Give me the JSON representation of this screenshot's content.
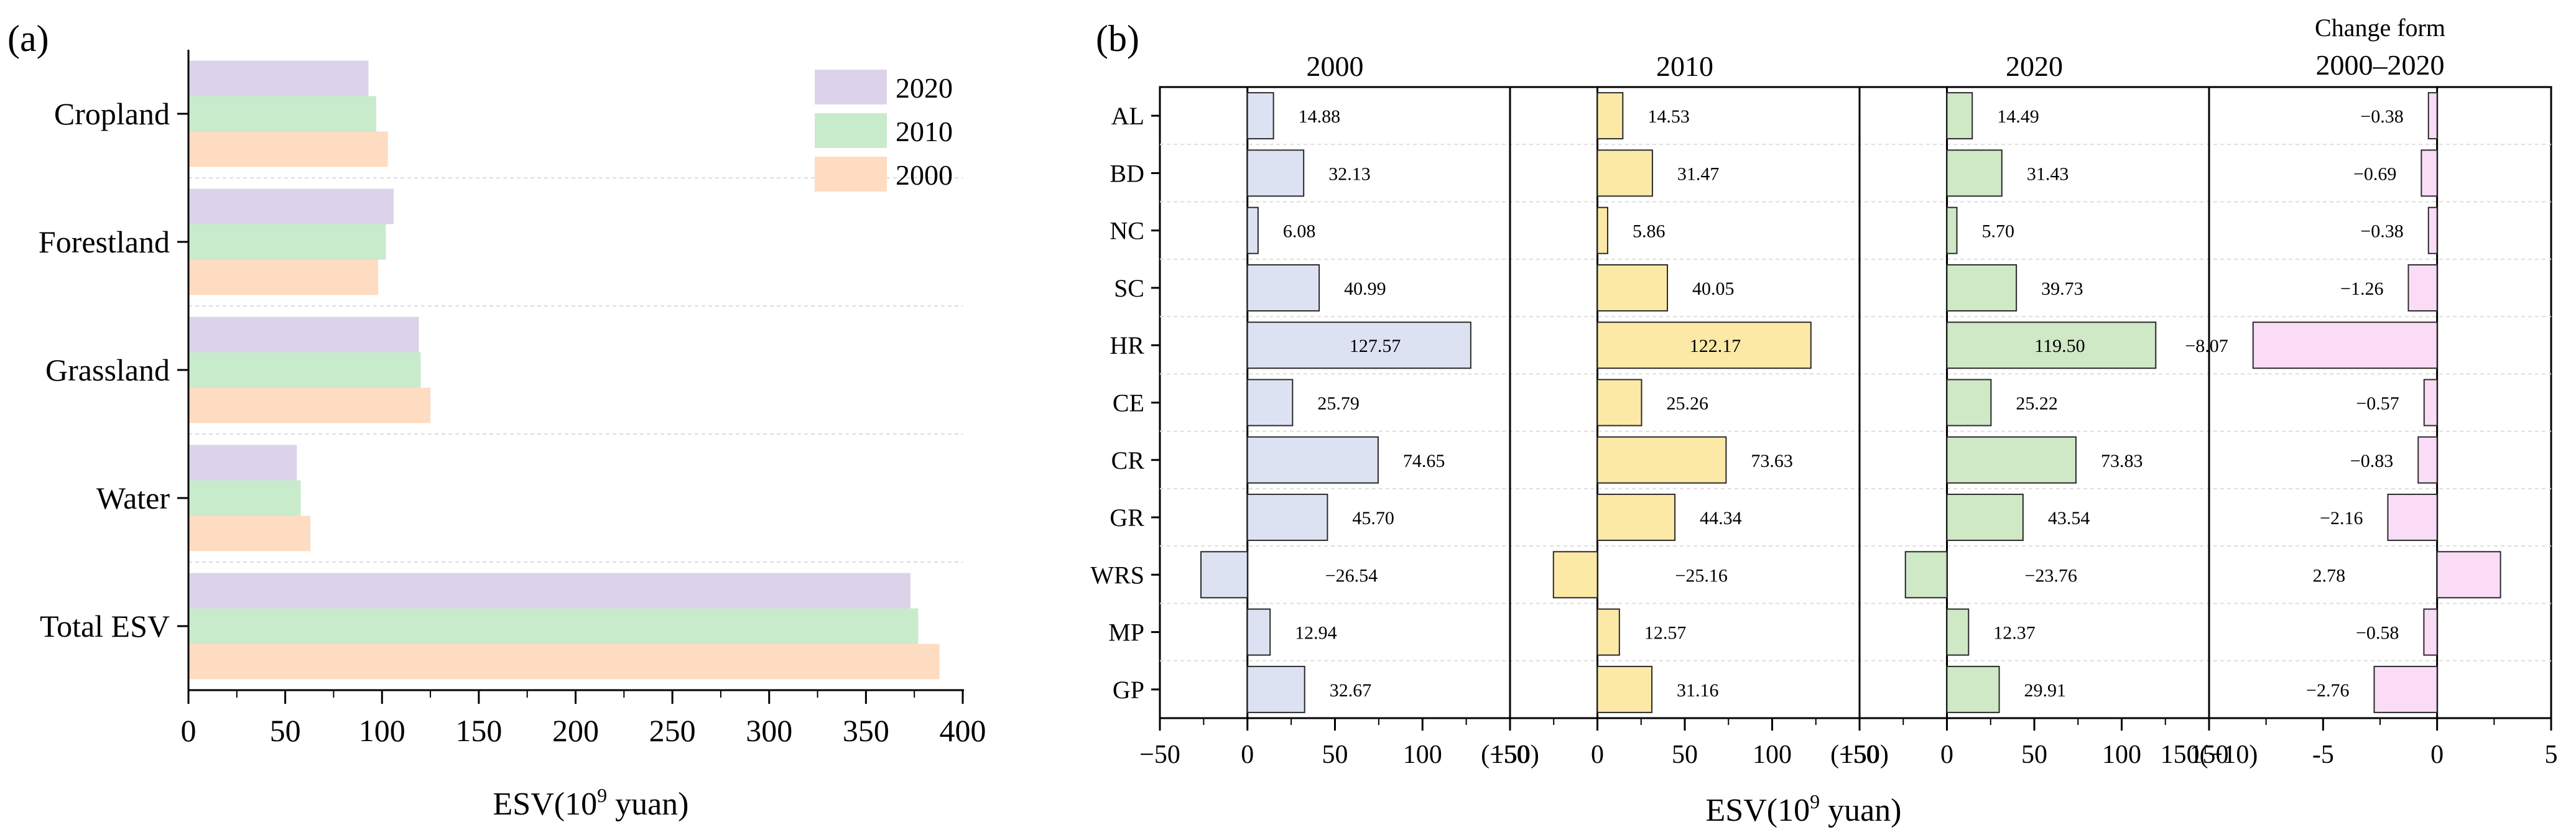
{
  "chart_data": [
    {
      "panel": "(a)",
      "type": "bar",
      "orientation": "horizontal",
      "categories": [
        "Cropland",
        "Forestland",
        "Grassland",
        "Water",
        "Total ESV"
      ],
      "series": [
        {
          "name": "2020",
          "color": "#dcd3ea",
          "values": [
            93,
            106,
            119,
            56,
            373
          ]
        },
        {
          "name": "2010",
          "color": "#c8ebcc",
          "values": [
            97,
            102,
            120,
            58,
            377
          ]
        },
        {
          "name": "2000",
          "color": "#fddcc2",
          "values": [
            103,
            98,
            125,
            63,
            388
          ]
        }
      ],
      "xlim": [
        0,
        400
      ],
      "xticks": [
        0,
        50,
        100,
        150,
        200,
        250,
        300,
        350,
        400
      ],
      "xlabel_main": "ESV(10",
      "xlabel_sup": "9",
      "xlabel_end": " yuan)",
      "legend_position": "top-right"
    },
    {
      "panel": "(b)",
      "type": "bar",
      "orientation": "horizontal",
      "rows": [
        "AL",
        "BD",
        "NC",
        "SC",
        "HR",
        "CE",
        "CR",
        "GR",
        "WRS",
        "MP",
        "GP"
      ],
      "columns": [
        {
          "title": "2000",
          "color": "#dde2f3",
          "xlim": [
            -50,
            150
          ],
          "ticks": [
            "−50",
            "0",
            "50",
            "100",
            "150"
          ],
          "tick_values": [
            -50,
            0,
            50,
            100,
            150
          ],
          "values": [
            14.88,
            32.13,
            6.08,
            40.99,
            127.57,
            25.79,
            74.65,
            45.7,
            -26.54,
            12.94,
            32.67
          ],
          "labels": [
            "14.88",
            "32.13",
            "6.08",
            "40.99",
            "127.57",
            "25.79",
            "74.65",
            "45.70",
            "−26.54",
            "12.94",
            "32.67"
          ]
        },
        {
          "title": "2010",
          "color": "#fde9a6",
          "xlim": [
            -50,
            150
          ],
          "ticks": [
            "(−50)",
            "0",
            "50",
            "100",
            "150"
          ],
          "tick_values": [
            -50,
            0,
            50,
            100,
            150
          ],
          "values": [
            14.53,
            31.47,
            5.86,
            40.05,
            122.17,
            25.26,
            73.63,
            44.34,
            -25.16,
            12.57,
            31.16
          ],
          "labels": [
            "14.53",
            "31.47",
            "5.86",
            "40.05",
            "122.17",
            "25.26",
            "73.63",
            "44.34",
            "−25.16",
            "12.57",
            "31.16"
          ]
        },
        {
          "title": "2020",
          "color": "#cfe8c6",
          "xlim": [
            -50,
            150
          ],
          "ticks": [
            "(−50)",
            "0",
            "50",
            "100",
            "150"
          ],
          "tick_values": [
            -50,
            0,
            50,
            100,
            150
          ],
          "values": [
            14.49,
            31.43,
            5.7,
            39.73,
            119.5,
            25.22,
            73.83,
            43.54,
            -23.76,
            12.37,
            29.91
          ],
          "labels": [
            "14.49",
            "31.43",
            "5.70",
            "39.73",
            "119.50",
            "25.22",
            "73.83",
            "43.54",
            "−23.76",
            "12.37",
            "29.91"
          ]
        },
        {
          "title_line1": "Change form",
          "title_line2": "2000–2020",
          "color": "#fbdcf6",
          "xlim": [
            -10,
            5
          ],
          "ticks": [
            "150(−10)",
            "-5",
            "0",
            "5"
          ],
          "tick_values": [
            -10,
            -5,
            0,
            5
          ],
          "values": [
            -0.38,
            -0.69,
            -0.38,
            -1.26,
            -8.07,
            -0.57,
            -0.83,
            -2.16,
            2.78,
            -0.58,
            -2.76
          ],
          "labels": [
            "−0.38",
            "−0.69",
            "−0.38",
            "−1.26",
            "−8.07",
            "−0.57",
            "−0.83",
            "−2.16",
            "2.78",
            "−0.58",
            "−2.76"
          ]
        }
      ],
      "xlabel_main": "ESV(10",
      "xlabel_sup": "9",
      "xlabel_end": " yuan)"
    }
  ]
}
